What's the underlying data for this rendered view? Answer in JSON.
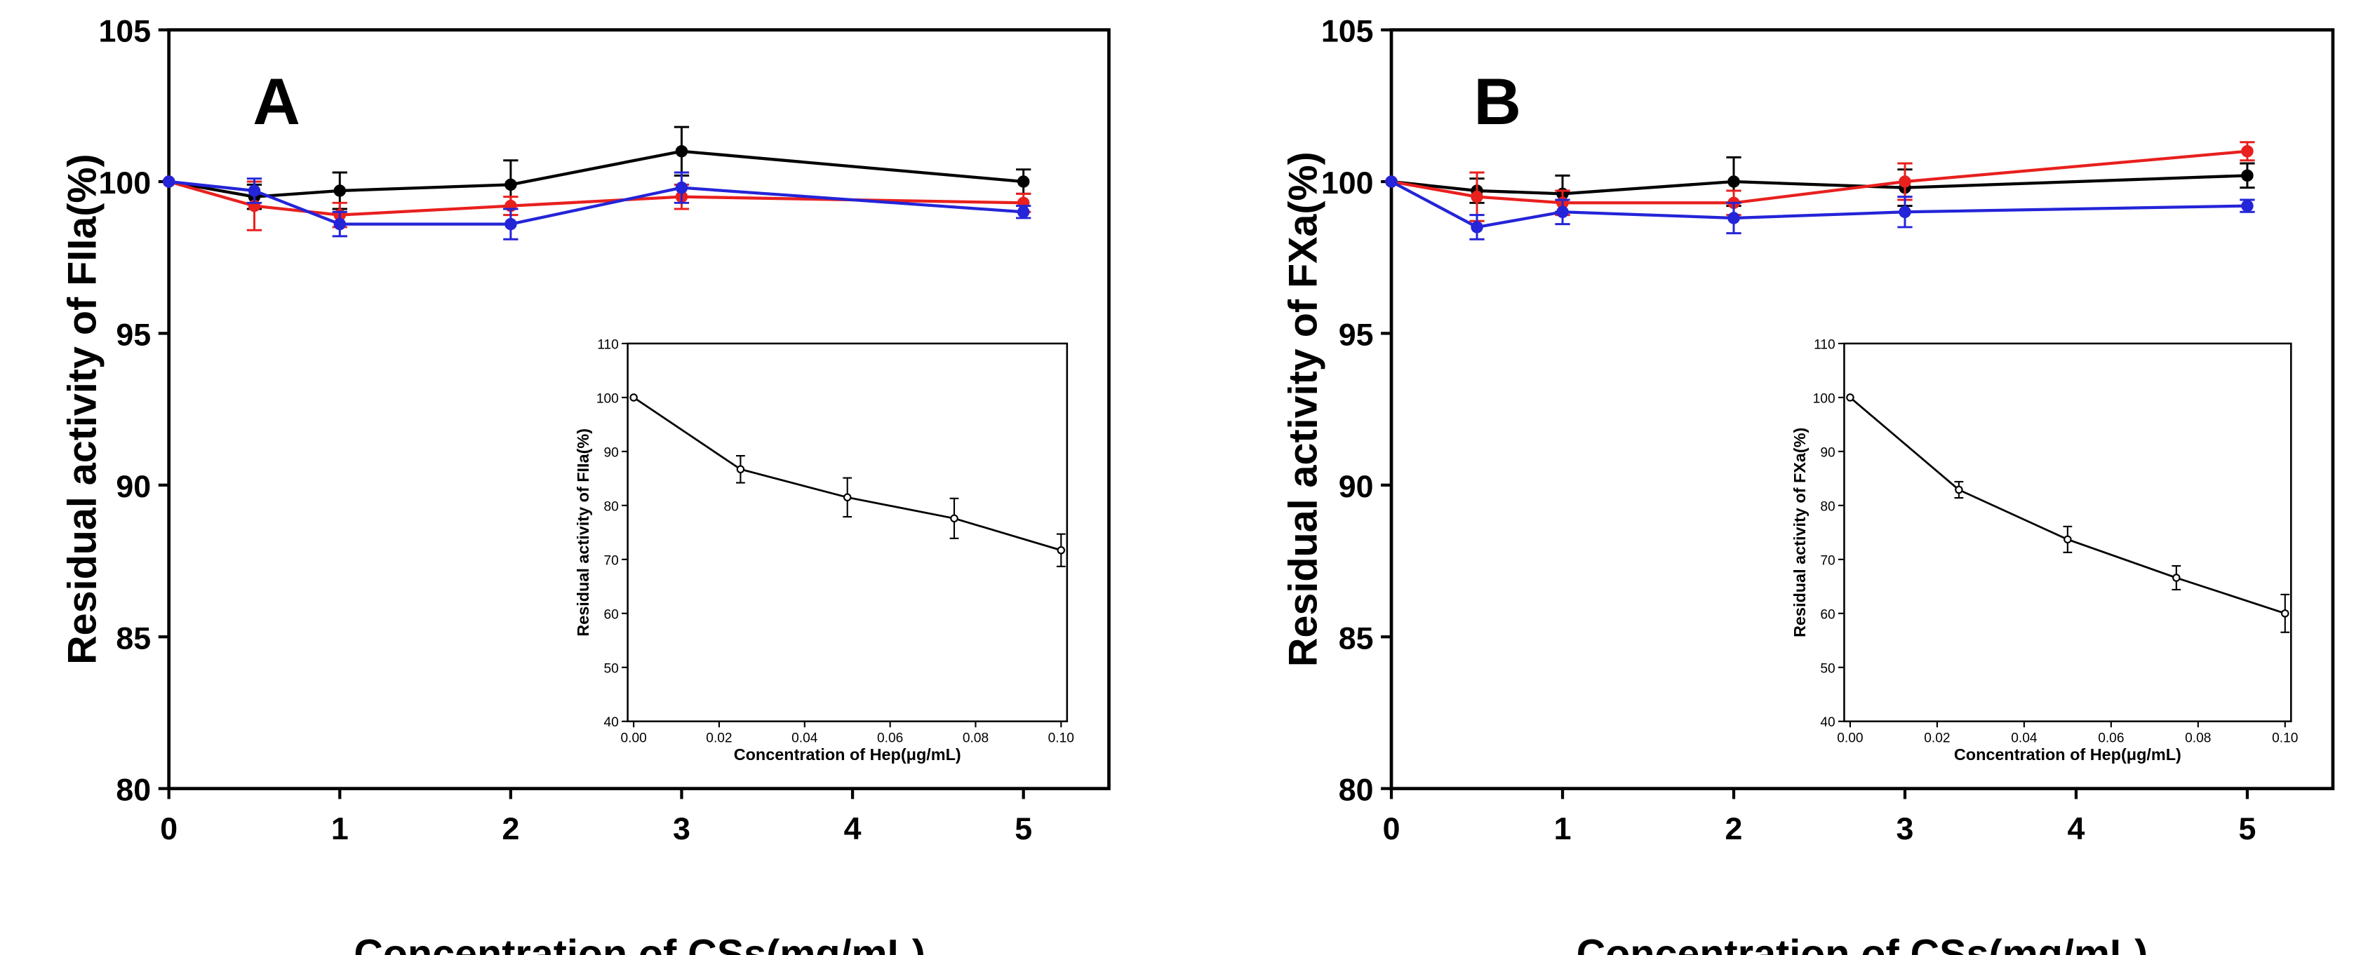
{
  "chart_data": [
    {
      "type": "line",
      "panel_label": "A",
      "xlabel": "Concentration of CSs(mg/mL)",
      "ylabel": "Residual activity of FIIa(%)",
      "xlim": [
        0,
        5.5
      ],
      "ylim": [
        80,
        105
      ],
      "xticks": [
        0,
        1,
        2,
        3,
        4,
        5
      ],
      "yticks": [
        80,
        85,
        90,
        95,
        100,
        105
      ],
      "series": [
        {
          "name": "black",
          "color": "#000000",
          "x": [
            0,
            0.5,
            1,
            2,
            3,
            5
          ],
          "y": [
            100,
            99.5,
            99.7,
            99.9,
            101.0,
            100.0
          ],
          "err": [
            0,
            0.4,
            0.6,
            0.8,
            0.8,
            0.4
          ]
        },
        {
          "name": "red",
          "color": "#e8201e",
          "x": [
            0,
            0.5,
            1,
            2,
            3,
            5
          ],
          "y": [
            100,
            99.2,
            98.9,
            99.2,
            99.5,
            99.3
          ],
          "err": [
            0,
            0.8,
            0.4,
            0.3,
            0.4,
            0.3
          ]
        },
        {
          "name": "blue",
          "color": "#2424d8",
          "x": [
            0,
            0.5,
            1,
            2,
            3,
            5
          ],
          "y": [
            100,
            99.7,
            98.6,
            98.6,
            99.8,
            99.0
          ],
          "err": [
            0,
            0.4,
            0.4,
            0.5,
            0.5,
            0.2
          ]
        }
      ],
      "inset": {
        "type": "line",
        "xlabel": "Concentration of Hep(μg/mL)",
        "ylabel": "Residual activity of FIIa(%)",
        "xlim": [
          0,
          0.1
        ],
        "ylim": [
          40,
          110
        ],
        "xticks": [
          "0.00",
          "0.02",
          "0.04",
          "0.06",
          "0.08",
          "0.10"
        ],
        "yticks": [
          40,
          50,
          60,
          70,
          80,
          90,
          100,
          110
        ],
        "x": [
          0,
          0.025,
          0.05,
          0.075,
          0.1
        ],
        "y": [
          100,
          86.7,
          81.5,
          77.6,
          71.7
        ],
        "err": [
          0,
          2.5,
          3.6,
          3.7,
          3.0
        ]
      }
    },
    {
      "type": "line",
      "panel_label": "B",
      "xlabel": "Concentration of CSs(mg/mL)",
      "ylabel": "Residual activity of FXa(%)",
      "xlim": [
        0,
        5.5
      ],
      "ylim": [
        80,
        105
      ],
      "xticks": [
        0,
        1,
        2,
        3,
        4,
        5
      ],
      "yticks": [
        80,
        85,
        90,
        95,
        100,
        105
      ],
      "series": [
        {
          "name": "black",
          "color": "#000000",
          "x": [
            0,
            0.5,
            1,
            2,
            3,
            5
          ],
          "y": [
            100,
            99.7,
            99.6,
            100.0,
            99.8,
            100.2
          ],
          "err": [
            0,
            0.4,
            0.6,
            0.8,
            0.6,
            0.4
          ]
        },
        {
          "name": "red",
          "color": "#e8201e",
          "x": [
            0,
            0.5,
            1,
            2,
            3,
            5
          ],
          "y": [
            100,
            99.5,
            99.3,
            99.3,
            100.0,
            101.0
          ],
          "err": [
            0,
            0.8,
            0.4,
            0.4,
            0.6,
            0.3
          ]
        },
        {
          "name": "blue",
          "color": "#2424d8",
          "x": [
            0,
            0.5,
            1,
            2,
            3,
            5
          ],
          "y": [
            100,
            98.5,
            99.0,
            98.8,
            99.0,
            99.2
          ],
          "err": [
            0,
            0.4,
            0.4,
            0.5,
            0.5,
            0.2
          ]
        }
      ],
      "inset": {
        "type": "line",
        "xlabel": "Concentration of Hep(μg/mL)",
        "ylabel": "Residual activity of FXa(%)",
        "xlim": [
          0,
          0.1
        ],
        "ylim": [
          40,
          110
        ],
        "xticks": [
          "0.00",
          "0.02",
          "0.04",
          "0.06",
          "0.08",
          "0.10"
        ],
        "yticks": [
          40,
          50,
          60,
          70,
          80,
          90,
          100,
          110
        ],
        "x": [
          0,
          0.025,
          0.05,
          0.075,
          0.1
        ],
        "y": [
          100,
          82.9,
          73.7,
          66.6,
          60.0
        ],
        "err": [
          0,
          1.5,
          2.4,
          2.2,
          3.5
        ]
      }
    }
  ]
}
